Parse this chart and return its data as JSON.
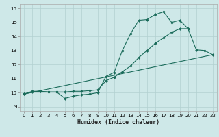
{
  "xlabel": "Humidex (Indice chaleur)",
  "bg_color": "#cee8e8",
  "grid_color": "#b2d0d0",
  "line_color": "#1a6b5a",
  "xlim": [
    -0.5,
    23.5
  ],
  "ylim": [
    8.7,
    16.3
  ],
  "xticks": [
    0,
    1,
    2,
    3,
    4,
    5,
    6,
    7,
    8,
    9,
    10,
    11,
    12,
    13,
    14,
    15,
    16,
    17,
    18,
    19,
    20,
    21,
    22,
    23
  ],
  "yticks": [
    9,
    10,
    11,
    12,
    13,
    14,
    15,
    16
  ],
  "line1_x": [
    0,
    1,
    2,
    3,
    4,
    5,
    6,
    7,
    8,
    9,
    10,
    11,
    12,
    13,
    14,
    15,
    16,
    17,
    18,
    19,
    20,
    21,
    22,
    23
  ],
  "line1_y": [
    9.9,
    10.1,
    10.1,
    10.05,
    10.05,
    9.6,
    9.75,
    9.85,
    9.9,
    10.0,
    11.15,
    11.45,
    13.0,
    14.2,
    15.15,
    15.2,
    15.55,
    15.75,
    15.0,
    15.15,
    14.55,
    13.05,
    13.0,
    12.7
  ],
  "line2_x": [
    0,
    23
  ],
  "line2_y": [
    9.9,
    12.7
  ],
  "line3_x": [
    0,
    1,
    2,
    3,
    4,
    5,
    6,
    7,
    8,
    9,
    10,
    11,
    12,
    13,
    14,
    15,
    16,
    17,
    18,
    19,
    20
  ],
  "line3_y": [
    9.9,
    10.05,
    10.1,
    10.05,
    10.05,
    10.05,
    10.1,
    10.1,
    10.15,
    10.2,
    10.85,
    11.1,
    11.5,
    11.9,
    12.5,
    13.0,
    13.5,
    13.9,
    14.3,
    14.55,
    14.55
  ]
}
